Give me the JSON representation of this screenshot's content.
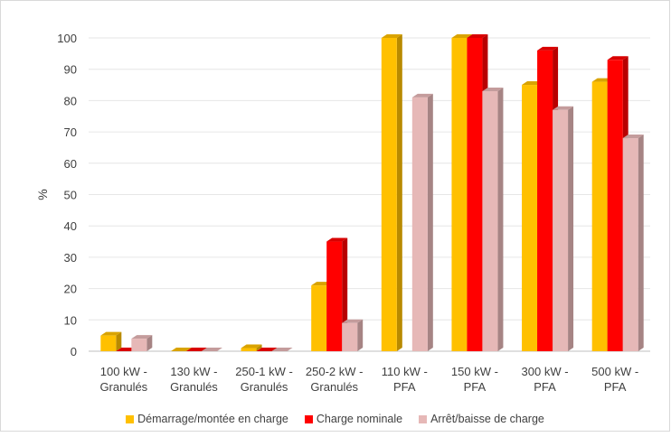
{
  "chart_data": {
    "type": "bar",
    "ylabel": "%",
    "xlabel": "",
    "ylim": [
      0,
      100
    ],
    "yticks": [
      0,
      10,
      20,
      30,
      40,
      50,
      60,
      70,
      80,
      90,
      100
    ],
    "grid": true,
    "legend_position": "bottom",
    "categories": [
      [
        "100 kW -",
        "Granulés"
      ],
      [
        "130 kW -",
        "Granulés"
      ],
      [
        "250-1 kW -",
        "Granulés"
      ],
      [
        "250-2 kW -",
        "Granulés"
      ],
      [
        "110 kW -",
        "PFA"
      ],
      [
        "150 kW -",
        "PFA"
      ],
      [
        "300 kW -",
        "PFA"
      ],
      [
        "500 kW -",
        "PFA"
      ]
    ],
    "series": [
      {
        "name": "Démarrage/montée en charge",
        "color": "#FFC000",
        "values": [
          5,
          0,
          1,
          21,
          100,
          100,
          85,
          86
        ]
      },
      {
        "name": "Charge nominale",
        "color": "#FF0000",
        "values": [
          0,
          0,
          0,
          35,
          null,
          100,
          96,
          93
        ]
      },
      {
        "name": "Arrêt/baisse de charge",
        "color": "#E6B8B7",
        "values": [
          4,
          0,
          0,
          9,
          81,
          83,
          77,
          68
        ]
      }
    ]
  }
}
